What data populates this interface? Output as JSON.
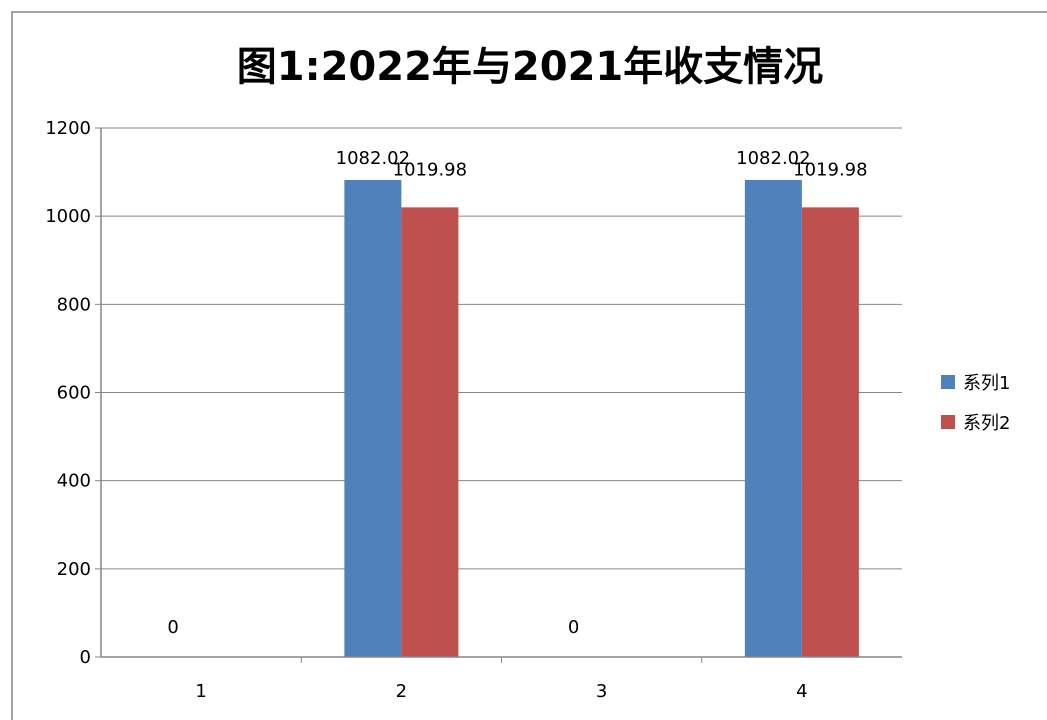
{
  "chart_data": {
    "type": "bar",
    "title": "图1:2022年与2021年收支情况",
    "xlabel": "",
    "ylabel": "",
    "categories": [
      "1",
      "2",
      "3",
      "4"
    ],
    "series": [
      {
        "name": "系列1",
        "color": "#4F81BD",
        "values": [
          0,
          1082.02,
          0,
          1082.02
        ]
      },
      {
        "name": "系列2",
        "color": "#C0504D",
        "values": [
          0,
          1019.98,
          0,
          1019.98
        ]
      }
    ],
    "data_labels": {
      "系列1": [
        "0",
        "1082.02",
        "0",
        "1082.02"
      ],
      "系列2": [
        "",
        "1019.98",
        "",
        "1019.98"
      ]
    },
    "ylim": [
      0,
      1200
    ],
    "yticks": [
      0,
      200,
      400,
      600,
      800,
      1000,
      1200
    ],
    "grid": true,
    "legend": "right"
  }
}
